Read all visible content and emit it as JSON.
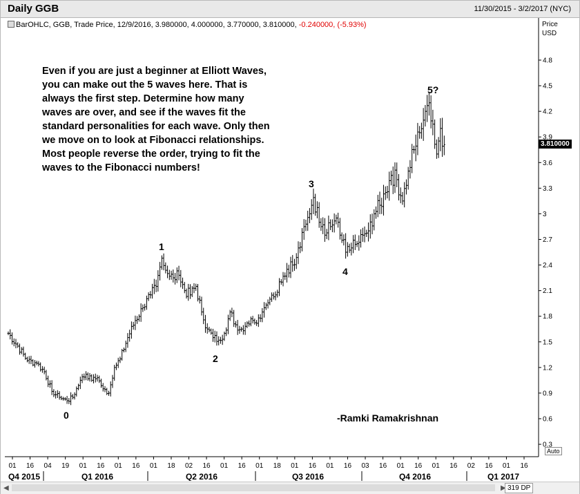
{
  "header": {
    "title": "Daily GGB",
    "date_range": "11/30/2015 - 3/2/2017 (NYC)"
  },
  "info_line": {
    "prefix": "BarOHLC, GGB, Trade Price, 12/9/2016, 3.980000, 4.000000, 3.770000, 3.810000,",
    "change": "-0.240000, (-5.93%)"
  },
  "price_axis": {
    "title": "Price",
    "unit": "USD",
    "last_price": "3.810000",
    "auto_label": "Auto"
  },
  "annotation": {
    "text": "Even if you are just a beginner at Elliott Waves, you can make out the 5 waves here. That is always the first step. Determine how many waves are over, and see if the waves fit the standard personalities for each wave. Only then we move on to look at Fibonacci relationships. Most people reverse the order, trying to fit the waves to the Fibonacci numbers!",
    "author": "-Ramki Ramakrishnan"
  },
  "waves": [
    {
      "label": "0"
    },
    {
      "label": "1"
    },
    {
      "label": "2"
    },
    {
      "label": "3"
    },
    {
      "label": "4"
    },
    {
      "label": "5?"
    }
  ],
  "scrollbar": {
    "zoom": "319 DP"
  },
  "chart_data": {
    "type": "ohlc",
    "title": "Daily GGB",
    "ylabel": "Price USD",
    "ylim": [
      0.25,
      5.0
    ],
    "y_ticks": [
      0.3,
      0.6,
      0.9,
      1.2,
      1.5,
      1.8,
      2.1,
      2.4,
      2.7,
      3,
      3.3,
      3.6,
      3.9,
      4.2,
      4.5,
      4.8
    ],
    "x_day_ticks": [
      "01",
      "16",
      "04",
      "19",
      "01",
      "16",
      "01",
      "16",
      "01",
      "18",
      "02",
      "16",
      "01",
      "16",
      "01",
      "18",
      "01",
      "16",
      "01",
      "16",
      "03",
      "16",
      "01",
      "16",
      "01",
      "16",
      "02",
      "16",
      "01",
      "16"
    ],
    "quarters": [
      "Q4 2015",
      "Q1 2016",
      "Q2 2016",
      "Q3 2016",
      "Q4 2016",
      "Q1 2017"
    ],
    "waves": [
      {
        "label": "0",
        "price": 0.82
      },
      {
        "label": "1",
        "price": 2.48
      },
      {
        "label": "2",
        "price": 1.5
      },
      {
        "label": "3",
        "price": 3.19
      },
      {
        "label": "4",
        "price": 2.5
      },
      {
        "label": "5?",
        "price": 4.3
      }
    ],
    "anchors": [
      [
        0,
        1.6
      ],
      [
        5,
        1.45
      ],
      [
        10,
        1.28
      ],
      [
        15,
        1.25
      ],
      [
        19,
        1.15
      ],
      [
        23,
        0.92
      ],
      [
        27,
        0.85
      ],
      [
        31,
        0.81
      ],
      [
        34,
        0.85
      ],
      [
        38,
        1.05
      ],
      [
        41,
        1.12
      ],
      [
        44,
        1.05
      ],
      [
        47,
        1.08
      ],
      [
        50,
        0.95
      ],
      [
        53,
        0.9
      ],
      [
        56,
        1.2
      ],
      [
        59,
        1.3
      ],
      [
        63,
        1.55
      ],
      [
        67,
        1.75
      ],
      [
        71,
        1.9
      ],
      [
        75,
        2.05
      ],
      [
        78,
        2.15
      ],
      [
        81,
        2.48
      ],
      [
        84,
        2.3
      ],
      [
        87,
        2.25
      ],
      [
        90,
        2.28
      ],
      [
        93,
        2.1
      ],
      [
        96,
        2.05
      ],
      [
        99,
        2.15
      ],
      [
        102,
        1.85
      ],
      [
        105,
        1.65
      ],
      [
        108,
        1.55
      ],
      [
        111,
        1.52
      ],
      [
        114,
        1.6
      ],
      [
        117,
        1.85
      ],
      [
        120,
        1.7
      ],
      [
        123,
        1.65
      ],
      [
        126,
        1.72
      ],
      [
        129,
        1.75
      ],
      [
        132,
        1.78
      ],
      [
        135,
        1.9
      ],
      [
        138,
        2.0
      ],
      [
        141,
        2.05
      ],
      [
        144,
        2.2
      ],
      [
        147,
        2.35
      ],
      [
        150,
        2.4
      ],
      [
        153,
        2.6
      ],
      [
        156,
        2.85
      ],
      [
        159,
        3.0
      ],
      [
        161,
        3.19
      ],
      [
        164,
        2.9
      ],
      [
        167,
        2.75
      ],
      [
        170,
        2.85
      ],
      [
        173,
        2.95
      ],
      [
        175,
        2.75
      ],
      [
        178,
        2.55
      ],
      [
        181,
        2.6
      ],
      [
        184,
        2.65
      ],
      [
        187,
        2.75
      ],
      [
        190,
        2.8
      ],
      [
        193,
        3.0
      ],
      [
        196,
        3.1
      ],
      [
        199,
        3.25
      ],
      [
        202,
        3.45
      ],
      [
        205,
        3.4
      ],
      [
        208,
        3.15
      ],
      [
        211,
        3.5
      ],
      [
        214,
        3.75
      ],
      [
        217,
        3.95
      ],
      [
        220,
        4.2
      ],
      [
        222,
        4.3
      ],
      [
        224,
        4.05
      ],
      [
        226,
        3.7
      ],
      [
        228,
        4.0
      ],
      [
        230,
        3.81
      ]
    ]
  }
}
